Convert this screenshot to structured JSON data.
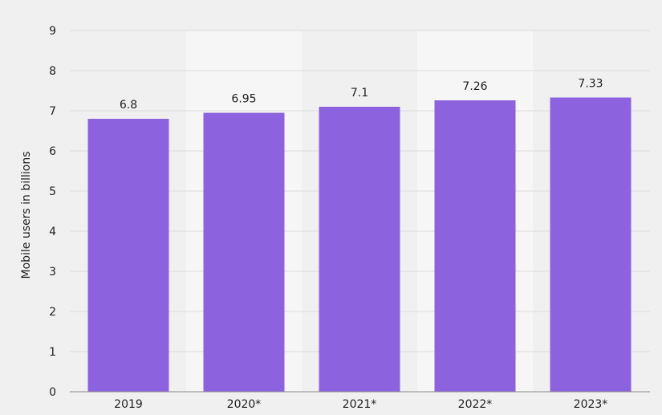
{
  "chart_data": {
    "type": "bar",
    "categories": [
      "2019",
      "2020*",
      "2021*",
      "2022*",
      "2023*"
    ],
    "values": [
      6.8,
      6.95,
      7.1,
      7.26,
      7.33
    ],
    "value_labels": [
      "6.8",
      "6.95",
      "7.1",
      "7.26",
      "7.33"
    ],
    "title": "",
    "xlabel": "",
    "ylabel": "Mobile users in billions",
    "ylim": [
      0,
      9
    ],
    "yticks": [
      "0",
      "1",
      "2",
      "3",
      "4",
      "5",
      "6",
      "7",
      "8",
      "9"
    ],
    "grid": true,
    "legend": "none",
    "colors": {
      "bar": "#8c62df",
      "background": "#f0f0f0",
      "band": "#f6f6f6",
      "gridline": "#dcdcdc",
      "axis": "#888888"
    }
  }
}
